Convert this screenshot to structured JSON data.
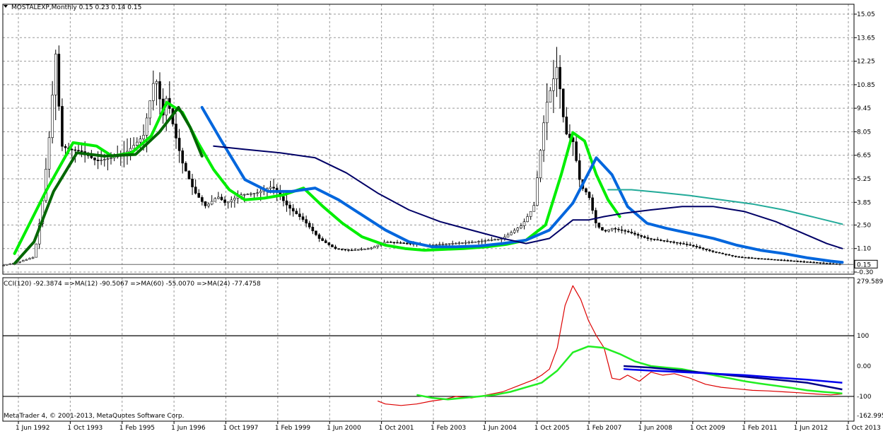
{
  "chart_data": [
    {
      "type": "candlestick",
      "title": "MOSTALEXP,Monthly  0.15 0.23 0.14 0.15",
      "symbol": "MOSTALEXP",
      "timeframe": "Monthly",
      "ohlc_last": {
        "open": 0.15,
        "high": 0.23,
        "low": 0.14,
        "close": 0.15
      },
      "ylim": [
        -0.3,
        15.35
      ],
      "y_ticks": [
        "15.05",
        "13.65",
        "12.25",
        "10.85",
        "9.45",
        "8.05",
        "6.65",
        "5.25",
        "3.85",
        "2.50",
        "1.10",
        "-0.30"
      ],
      "price_label": "0.15",
      "grid": true,
      "close_series": {
        "x": [
          1992.4,
          1992.8,
          1993.2,
          1993.4,
          1993.6,
          1993.75,
          1993.9,
          1994.1,
          1994.4,
          1994.8,
          1995.2,
          1995.6,
          1996.0,
          1996.3,
          1996.5,
          1996.6,
          1996.8,
          1997.0,
          1997.3,
          1997.6,
          1997.9,
          1998.1,
          1998.5,
          1998.9,
          1999.3,
          1999.7,
          2000.1,
          2000.5,
          2000.9,
          2001.3,
          2001.8,
          2002.2,
          2002.8,
          2003.3,
          2003.9,
          2004.5,
          2005.2,
          2005.7,
          2006.0,
          2006.3,
          2006.6,
          2006.8,
          2007.0,
          2007.2,
          2007.4,
          2007.6,
          2007.8,
          2008.0,
          2008.4,
          2008.9,
          2009.5,
          2010.0,
          2010.6,
          2011.2,
          2011.8,
          2012.4,
          2013.0,
          2013.6,
          2013.9
        ],
        "close": [
          0.1,
          0.3,
          0.6,
          3.5,
          8.0,
          12.8,
          7.2,
          7.0,
          6.9,
          6.3,
          6.5,
          6.9,
          7.8,
          11.5,
          9.0,
          10.2,
          8.0,
          6.2,
          4.5,
          3.6,
          4.2,
          3.8,
          4.3,
          4.4,
          4.8,
          3.6,
          2.8,
          1.7,
          1.1,
          1.0,
          1.1,
          1.5,
          1.4,
          1.3,
          1.4,
          1.5,
          1.7,
          2.5,
          3.6,
          9.5,
          12.0,
          8.0,
          7.5,
          4.8,
          4.3,
          2.5,
          2.1,
          2.3,
          2.1,
          1.7,
          1.5,
          1.3,
          0.9,
          0.6,
          0.5,
          0.4,
          0.3,
          0.2,
          0.15
        ]
      },
      "moving_averages": [
        {
          "color": "#00ee00",
          "x": [
            1992.7,
            1993.5,
            1994.2,
            1994.8,
            1995.2,
            1995.7,
            1996.2,
            1996.6,
            1997.0,
            1997.4,
            1997.8,
            1998.2,
            1998.6,
            1999.1,
            1999.6,
            2000.1,
            2000.6,
            2001.1,
            2001.6,
            2002.2,
            2002.7,
            2003.2,
            2003.7,
            2004.2,
            2004.8,
            2005.3,
            2005.8,
            2006.3,
            2006.7,
            2007.0,
            2007.3,
            2007.6,
            2007.9,
            2008.2
          ],
          "y": [
            0.8,
            4.5,
            7.4,
            7.2,
            6.6,
            6.8,
            7.8,
            9.8,
            9.2,
            7.4,
            5.8,
            4.6,
            4.0,
            4.1,
            4.3,
            4.7,
            3.6,
            2.6,
            1.8,
            1.3,
            1.1,
            1.0,
            1.05,
            1.1,
            1.2,
            1.35,
            1.6,
            2.5,
            5.5,
            8.0,
            7.5,
            5.5,
            4.0,
            3.0
          ]
        },
        {
          "color": "#0066dd",
          "x": [
            1997.5,
            1998.0,
            1998.6,
            1999.2,
            1999.8,
            2000.4,
            2001.0,
            2001.6,
            2002.2,
            2002.8,
            2003.4,
            2004.0,
            2004.6,
            2005.2,
            2005.8,
            2006.4,
            2007.0,
            2007.6,
            2008.0,
            2008.4,
            2008.9,
            2009.4,
            2010.0,
            2010.6,
            2011.2,
            2011.8,
            2012.4,
            2013.0,
            2013.6,
            2013.9
          ],
          "y": [
            9.5,
            7.5,
            5.2,
            4.5,
            4.5,
            4.7,
            4.0,
            3.1,
            2.2,
            1.5,
            1.2,
            1.2,
            1.25,
            1.4,
            1.6,
            2.2,
            3.8,
            6.5,
            5.5,
            3.6,
            2.6,
            2.3,
            2.0,
            1.7,
            1.3,
            1.0,
            0.8,
            0.55,
            0.35,
            0.28
          ]
        },
        {
          "color": "#006600",
          "x": [
            1992.7,
            1993.2,
            1993.7,
            1994.3,
            1995.0,
            1995.8,
            1996.4,
            1996.9,
            1997.2,
            1997.5
          ],
          "y": [
            0.2,
            1.5,
            4.5,
            6.8,
            6.6,
            6.7,
            8.0,
            9.5,
            8.3,
            6.6
          ]
        },
        {
          "color": "#000066",
          "x": [
            1997.8,
            1998.6,
            1999.5,
            2000.4,
            2001.2,
            2002.0,
            2002.8,
            2003.6,
            2004.4,
            2005.2,
            2005.8,
            2006.4,
            2007.0,
            2007.4,
            2007.8,
            2008.3,
            2009.0,
            2009.8,
            2010.6,
            2011.4,
            2012.2,
            2013.0,
            2013.5,
            2013.9
          ],
          "y": [
            7.2,
            7.0,
            6.8,
            6.5,
            5.6,
            4.4,
            3.4,
            2.7,
            2.2,
            1.7,
            1.4,
            1.7,
            2.8,
            2.8,
            3.0,
            3.2,
            3.4,
            3.6,
            3.6,
            3.3,
            2.7,
            1.9,
            1.4,
            1.1
          ]
        },
        {
          "color": "#22aa99",
          "x": [
            2007.9,
            2008.5,
            2009.2,
            2010.0,
            2010.8,
            2011.6,
            2012.4,
            2013.2,
            2013.9
          ],
          "y": [
            4.6,
            4.6,
            4.45,
            4.25,
            4.0,
            3.75,
            3.4,
            2.95,
            2.55
          ]
        }
      ]
    },
    {
      "type": "line",
      "title": "CCI(120) -92.3874  =>MA(12) -90.5067  =>MA(60) -55.0070  =>MA(24) -77.4758",
      "ylim": [
        -162.995,
        279.5891
      ],
      "y_ticks": [
        "279.5891",
        "100",
        "0.00",
        "-100",
        "-162.995"
      ],
      "levels": [
        100,
        -100
      ],
      "x_ticks": [
        "1 Jun 1992",
        "1 Oct 1993",
        "1 Feb 1995",
        "1 Jun 1996",
        "1 Oct 1997",
        "1 Feb 1999",
        "1 Jun 2000",
        "1 Oct 2001",
        "1 Feb 2003",
        "1 Jun 2004",
        "1 Oct 2005",
        "1 Feb 2007",
        "1 Jun 2008",
        "1 Oct 2009",
        "1 Feb 2011",
        "1 Jun 2012",
        "1 Oct 2013"
      ],
      "series": [
        {
          "name": "CCI(120)",
          "color": "#dd0000",
          "x": [
            2002.0,
            2002.2,
            2002.6,
            2003.0,
            2003.4,
            2003.7,
            2004.0,
            2004.4,
            2004.8,
            2005.2,
            2005.5,
            2005.8,
            2006.0,
            2006.2,
            2006.4,
            2006.6,
            2006.8,
            2007.0,
            2007.2,
            2007.4,
            2007.6,
            2007.8,
            2008.0,
            2008.2,
            2008.4,
            2008.7,
            2009.0,
            2009.3,
            2009.6,
            2010.0,
            2010.4,
            2010.8,
            2011.2,
            2011.6,
            2012.0,
            2012.4,
            2012.8,
            2013.2,
            2013.6,
            2013.9
          ],
          "y": [
            -115,
            -125,
            -130,
            -125,
            -115,
            -110,
            -100,
            -105,
            -95,
            -85,
            -70,
            -55,
            -45,
            -30,
            -10,
            60,
            200,
            265,
            220,
            150,
            100,
            60,
            -40,
            -45,
            -30,
            -50,
            -20,
            -30,
            -25,
            -40,
            -60,
            -70,
            -75,
            -80,
            -82,
            -85,
            -88,
            -92,
            -95,
            -92
          ]
        },
        {
          "name": "MA(12)",
          "color": "#22ee22",
          "x": [
            2003.0,
            2003.4,
            2003.8,
            2004.2,
            2004.6,
            2005.0,
            2005.4,
            2005.8,
            2006.2,
            2006.6,
            2007.0,
            2007.4,
            2007.8,
            2008.2,
            2008.6,
            2009.0,
            2009.4,
            2009.8,
            2010.2,
            2010.6,
            2011.0,
            2011.4,
            2011.8,
            2012.2,
            2012.6,
            2013.0,
            2013.4,
            2013.9
          ],
          "y": [
            -95,
            -105,
            -110,
            -105,
            -100,
            -95,
            -85,
            -70,
            -55,
            -15,
            45,
            65,
            60,
            40,
            15,
            0,
            -5,
            -10,
            -20,
            -30,
            -40,
            -50,
            -58,
            -65,
            -72,
            -80,
            -85,
            -90
          ]
        },
        {
          "name": "MA(24)",
          "color": "#000088",
          "x": [
            2008.3,
            2009.0,
            2009.8,
            2010.6,
            2011.4,
            2012.2,
            2013.0,
            2013.9
          ],
          "y": [
            0,
            -5,
            -15,
            -25,
            -35,
            -45,
            -55,
            -77
          ]
        },
        {
          "name": "MA(60)",
          "color": "#0000ee",
          "x": [
            2008.3,
            2009.0,
            2009.8,
            2010.6,
            2011.4,
            2012.2,
            2013.0,
            2013.9
          ],
          "y": [
            -10,
            -15,
            -20,
            -25,
            -30,
            -38,
            -45,
            -55
          ]
        }
      ]
    }
  ],
  "footer": {
    "copyright": "MetaTrader 4, © 2001-2013, MetaQuotes Software Corp."
  },
  "ui": {
    "background": "#ffffff",
    "grid_color": "#999999",
    "axis_color": "#000000",
    "up_candle": "#ffffff",
    "down_candle": "#000000"
  }
}
